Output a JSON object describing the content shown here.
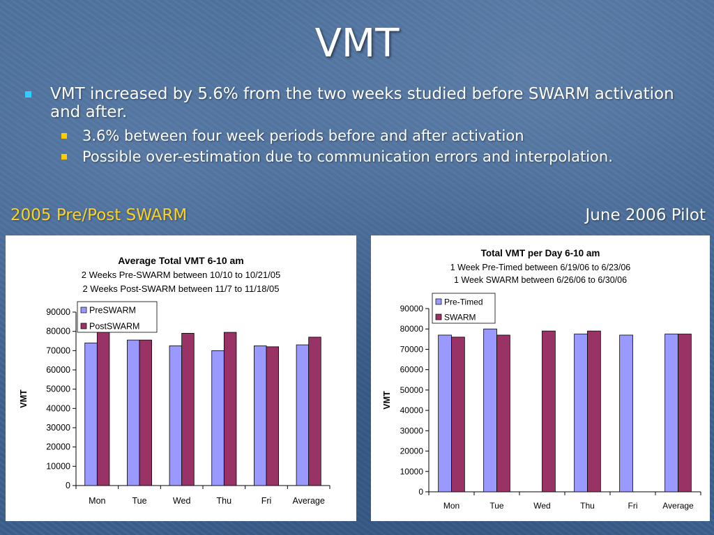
{
  "slide": {
    "title": "VMT",
    "bullet1": "VMT increased by 5.6% from the two weeks studied before SWARM activation and after.",
    "bullet1_line1": "VMT increased by 5.6% from the two weeks studied before SWARM",
    "bullet1_line2": "activation and after.",
    "sub_bullets": [
      "3.6% between four week periods before and after activation",
      "Possible over-estimation due to communication errors and interpolation."
    ],
    "label_left": "2005 Pre/Post SWARM",
    "label_right": "June 2006 Pilot",
    "colors": {
      "background": "#3f6592",
      "series_pre": "#9999ff",
      "series_post": "#993366",
      "bullet_main": "#33ccff",
      "bullet_sub": "#ffcc00",
      "left_label": "#ffd21f"
    }
  },
  "chart_data": [
    {
      "type": "bar",
      "title": "Average Total VMT 6-10 am",
      "subtitle": [
        "2 Weeks Pre-SWARM between 10/10 to 10/21/05",
        "2 Weeks Post-SWARM between 11/7 to 11/18/05"
      ],
      "xlabel": "",
      "ylabel": "VMT",
      "ylim": [
        0,
        90000
      ],
      "yticks": [
        0,
        10000,
        20000,
        30000,
        40000,
        50000,
        60000,
        70000,
        80000,
        90000
      ],
      "grid": false,
      "legend": "top-left",
      "categories": [
        "Mon",
        "Tue",
        "Wed",
        "Thu",
        "Fri",
        "Average"
      ],
      "series": [
        {
          "name": "PreSWARM",
          "color": "#9999ff",
          "values": [
            74000,
            75500,
            72500,
            70000,
            72500,
            73000
          ]
        },
        {
          "name": "PostSWARM",
          "color": "#993366",
          "values": [
            80000,
            75500,
            79000,
            79500,
            72000,
            77000
          ]
        }
      ]
    },
    {
      "type": "bar",
      "title": "Total VMT per Day 6-10 am",
      "subtitle": [
        "1 Week Pre-Timed between 6/19/06 to 6/23/06",
        "1 Week SWARM between 6/26/06 to 6/30/06"
      ],
      "xlabel": "",
      "ylabel": "VMT",
      "ylim": [
        0,
        90000
      ],
      "yticks": [
        0,
        10000,
        20000,
        30000,
        40000,
        50000,
        60000,
        70000,
        80000,
        90000
      ],
      "grid": false,
      "legend": "top-left",
      "categories": [
        "Mon",
        "Tue",
        "Wed",
        "Thu",
        "Fri",
        "Average"
      ],
      "series": [
        {
          "name": "Pre-Timed",
          "color": "#9999ff",
          "values": [
            77000,
            80000,
            null,
            77500,
            77000,
            77500
          ]
        },
        {
          "name": "SWARM",
          "color": "#993366",
          "values": [
            76000,
            77000,
            79000,
            79000,
            null,
            77500
          ]
        }
      ]
    }
  ]
}
